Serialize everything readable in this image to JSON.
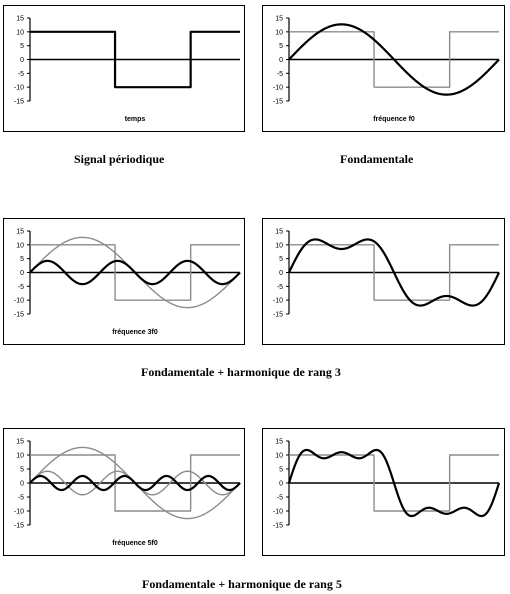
{
  "colors": {
    "black": "#000000",
    "gray": "#8c8c8c"
  },
  "captions": {
    "row1_left": "Signal périodique",
    "row1_right": "Fondamentale",
    "row2": "Fondamentale + harmonique de rang 3",
    "row3": "Fondamentale + harmonique de rang 5"
  },
  "chart_data": [
    {
      "id": "p1",
      "type": "line",
      "xlabel": "temps",
      "yticks": [
        "15",
        "10",
        "5",
        "0",
        "-5",
        "-10",
        "-15"
      ],
      "ylim": [
        -15,
        15
      ],
      "series": [
        {
          "kind": "square",
          "amplitude": 10,
          "periods": 1,
          "color": "black"
        }
      ]
    },
    {
      "id": "p2",
      "type": "line",
      "xlabel": "fréquence f0",
      "yticks": [
        "15",
        "10",
        "5",
        "0",
        "-5",
        "-10",
        "-15"
      ],
      "ylim": [
        -15,
        15
      ],
      "series": [
        {
          "kind": "square",
          "amplitude": 10,
          "periods": 1,
          "color": "gray"
        },
        {
          "kind": "sine",
          "amplitude": 12.7,
          "harmonic": 1,
          "color": "black"
        }
      ]
    },
    {
      "id": "p3",
      "type": "line",
      "xlabel": "fréquence 3f0",
      "yticks": [
        "15",
        "10",
        "5",
        "0",
        "-5",
        "-10",
        "-15"
      ],
      "ylim": [
        -15,
        15
      ],
      "series": [
        {
          "kind": "square",
          "amplitude": 10,
          "periods": 1,
          "color": "gray"
        },
        {
          "kind": "sine",
          "amplitude": 12.7,
          "harmonic": 1,
          "color": "gray"
        },
        {
          "kind": "sine",
          "amplitude": 4.2,
          "harmonic": 3,
          "color": "black"
        }
      ]
    },
    {
      "id": "p4",
      "type": "line",
      "xlabel": "",
      "yticks": [
        "15",
        "10",
        "5",
        "0",
        "-5",
        "-10",
        "-15"
      ],
      "ylim": [
        -15,
        15
      ],
      "series": [
        {
          "kind": "square",
          "amplitude": 10,
          "periods": 1,
          "color": "gray"
        },
        {
          "kind": "sum",
          "harmonics": [
            1,
            3
          ],
          "amplitudes": [
            12.7,
            4.2
          ],
          "color": "black"
        }
      ]
    },
    {
      "id": "p5",
      "type": "line",
      "xlabel": "fréquence 5f0",
      "yticks": [
        "15",
        "10",
        "5",
        "0",
        "-5",
        "-10",
        "-15"
      ],
      "ylim": [
        -15,
        15
      ],
      "series": [
        {
          "kind": "square",
          "amplitude": 10,
          "periods": 1,
          "color": "gray"
        },
        {
          "kind": "sine",
          "amplitude": 12.7,
          "harmonic": 1,
          "color": "gray"
        },
        {
          "kind": "sine",
          "amplitude": 4.2,
          "harmonic": 3,
          "color": "gray"
        },
        {
          "kind": "sine",
          "amplitude": 2.5,
          "harmonic": 5,
          "color": "black"
        }
      ]
    },
    {
      "id": "p6",
      "type": "line",
      "xlabel": "",
      "yticks": [
        "15",
        "10",
        "5",
        "0",
        "-5",
        "-10",
        "-15"
      ],
      "ylim": [
        -15,
        15
      ],
      "series": [
        {
          "kind": "square",
          "amplitude": 10,
          "periods": 1,
          "color": "gray"
        },
        {
          "kind": "sum",
          "harmonics": [
            1,
            3,
            5
          ],
          "amplitudes": [
            12.7,
            4.2,
            2.5
          ],
          "color": "black"
        }
      ]
    }
  ]
}
